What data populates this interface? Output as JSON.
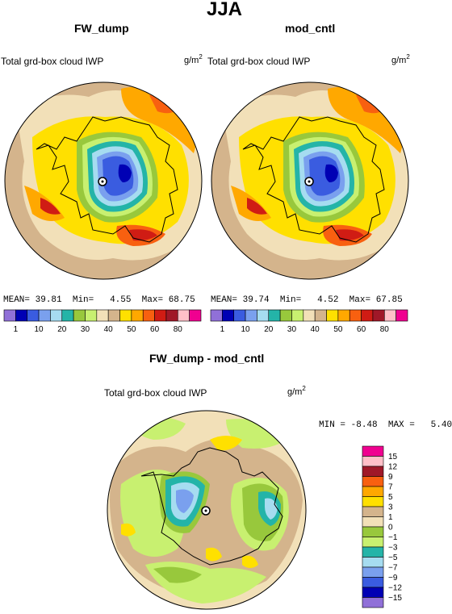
{
  "title": "JJA",
  "panels": [
    {
      "title": "FW_dump",
      "label": "Total grd-box cloud IWP",
      "units": "g/m",
      "units_sup": "2",
      "stats": {
        "mean_label": "MEAN=",
        "mean": "39.81",
        "min_label": "Min=",
        "min": "4.55",
        "max_label": "Max=",
        "max": "68.75"
      }
    },
    {
      "title": "mod_cntl",
      "label": "Total grd-box cloud IWP",
      "units": "g/m",
      "units_sup": "2",
      "stats": {
        "mean_label": "MEAN=",
        "mean": "39.74",
        "min_label": "Min=",
        "min": "4.52",
        "max_label": "Max=",
        "max": "67.85"
      }
    },
    {
      "title": "FW_dump - mod_cntl",
      "label": "Total grd-box cloud IWP",
      "units": "g/m",
      "units_sup": "2",
      "stats": {
        "min_label": "MIN =",
        "min": "-8.48",
        "max_label": "MAX =",
        "max": "5.40"
      }
    }
  ],
  "chart_data": [
    {
      "type": "heatmap",
      "title": "FW_dump",
      "projection": "polar stereographic",
      "legend_placement": "bottom",
      "color_levels": [
        "1",
        "10",
        "20",
        "30",
        "40",
        "50",
        "60",
        "80"
      ],
      "colors": [
        "#9070d8",
        "#0000b4",
        "#3a5ce0",
        "#7aa0ee",
        "#a6dcf0",
        "#24b4a8",
        "#98c83c",
        "#c8f070",
        "#f2e0b8",
        "#d4b48c",
        "#ffe000",
        "#ffa800",
        "#f86010",
        "#d01c14",
        "#a01828",
        "#ffc0c8",
        "#f00090"
      ],
      "stats": {
        "mean": 39.81,
        "min": 4.55,
        "max": 68.75
      }
    },
    {
      "type": "heatmap",
      "title": "mod_cntl",
      "projection": "polar stereographic",
      "legend_placement": "bottom",
      "color_levels": [
        "1",
        "10",
        "20",
        "30",
        "40",
        "50",
        "60",
        "80"
      ],
      "colors": [
        "#9070d8",
        "#0000b4",
        "#3a5ce0",
        "#7aa0ee",
        "#a6dcf0",
        "#24b4a8",
        "#98c83c",
        "#c8f070",
        "#f2e0b8",
        "#d4b48c",
        "#ffe000",
        "#ffa800",
        "#f86010",
        "#d01c14",
        "#a01828",
        "#ffc0c8",
        "#f00090"
      ],
      "stats": {
        "mean": 39.74,
        "min": 4.52,
        "max": 67.85
      }
    },
    {
      "type": "heatmap",
      "title": "FW_dump - mod_cntl",
      "projection": "polar stereographic",
      "legend_placement": "right",
      "color_levels": [
        "15",
        "12",
        "9",
        "7",
        "5",
        "3",
        "1",
        "0",
        "−1",
        "−3",
        "−5",
        "−7",
        "−9",
        "−12",
        "−15"
      ],
      "colors": [
        "#f00090",
        "#ffc0c8",
        "#a01828",
        "#f86010",
        "#ffa800",
        "#ffe000",
        "#d4b48c",
        "#f2e0b8",
        "#98c83c",
        "#c8f070",
        "#24b4a8",
        "#a6dcf0",
        "#7aa0ee",
        "#3a5ce0",
        "#0000b4",
        "#9070d8"
      ],
      "stats": {
        "min": -8.48,
        "max": 5.4
      }
    }
  ]
}
